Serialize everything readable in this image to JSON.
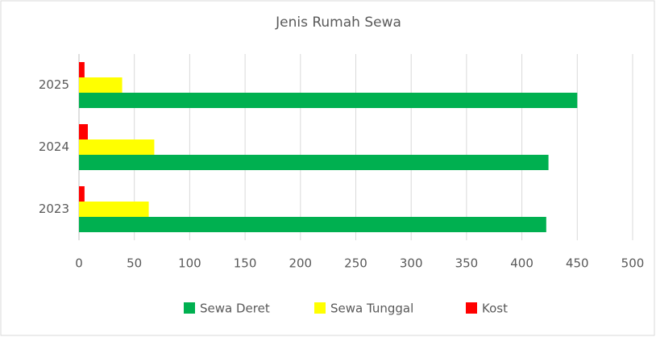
{
  "chart_data": {
    "type": "hbar",
    "title": "Jenis Rumah Sewa",
    "categories": [
      "2023",
      "2024",
      "2025"
    ],
    "series": [
      {
        "name": "Sewa Deret",
        "color": "#00b050",
        "values": [
          422,
          424,
          450
        ]
      },
      {
        "name": "Sewa Tunggal",
        "color": "#ffff00",
        "values": [
          63,
          68,
          39
        ]
      },
      {
        "name": "Kost",
        "color": "#ff0000",
        "values": [
          5,
          8,
          5
        ]
      }
    ],
    "xlim": [
      0,
      500
    ],
    "xticks": [
      0,
      50,
      100,
      150,
      200,
      250,
      300,
      350,
      400,
      450,
      500
    ],
    "grid": true,
    "legend": "bottom"
  }
}
